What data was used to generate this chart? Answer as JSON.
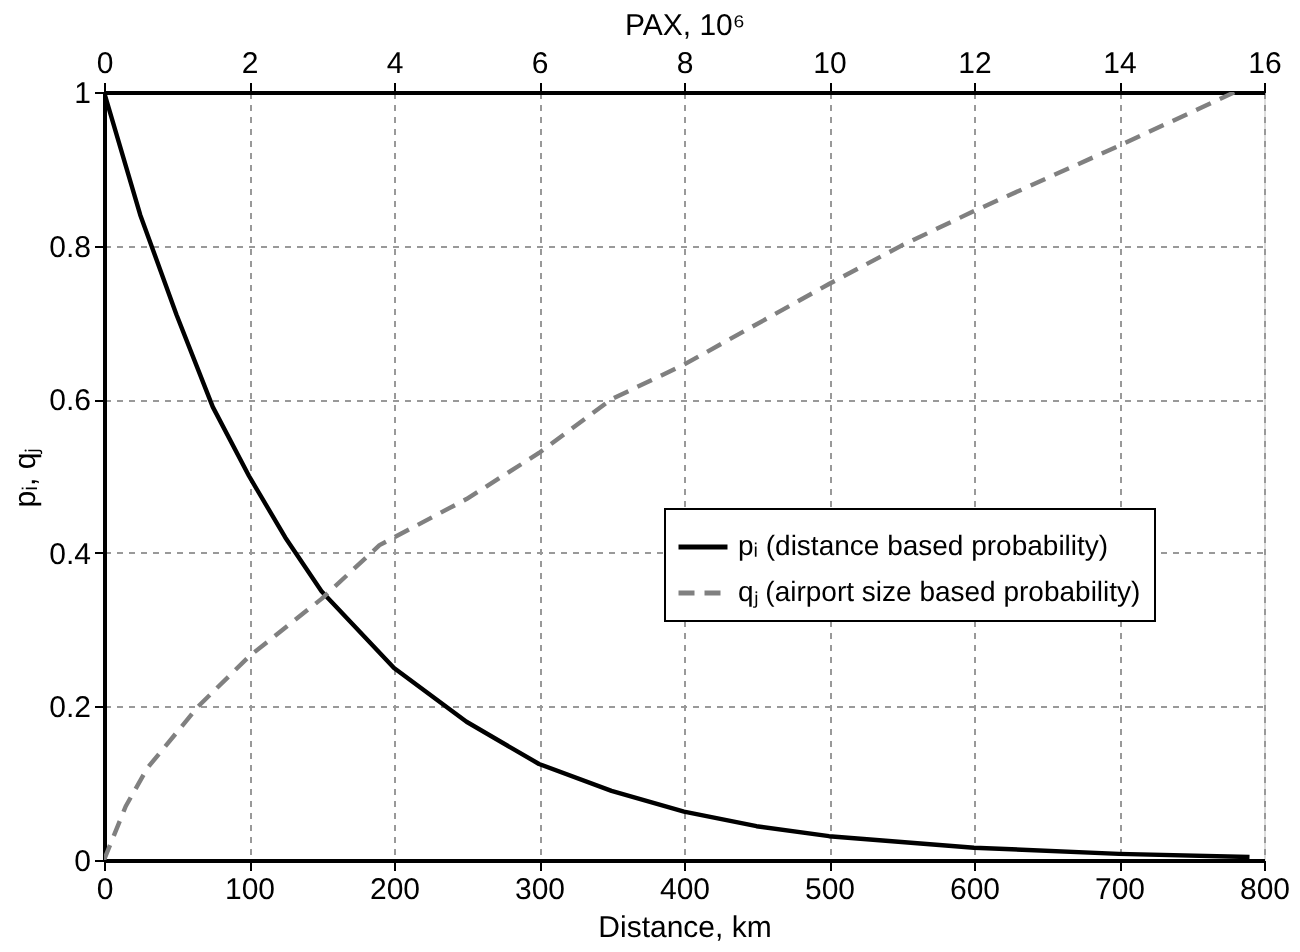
{
  "chart_data": {
    "type": "line",
    "xlabel": "Distance, km",
    "ylabel": "pᵢ, qⱼ",
    "x2label": "PAX, 10⁶",
    "xlim": [
      0,
      800
    ],
    "xticks": [
      0,
      100,
      200,
      300,
      400,
      500,
      600,
      700,
      800
    ],
    "x2lim": [
      0,
      16
    ],
    "x2ticks": [
      0,
      2,
      4,
      6,
      8,
      10,
      12,
      14,
      16
    ],
    "ylim": [
      0,
      1
    ],
    "yticks": [
      0,
      0.2,
      0.4,
      0.6,
      0.8,
      1
    ],
    "grid": true,
    "legend": "right",
    "series": [
      {
        "name": "pᵢ (distance based probability)",
        "color": "#000000",
        "line_style": "solid",
        "x": [
          0,
          25,
          50,
          75,
          100,
          125,
          150,
          200,
          250,
          300,
          350,
          400,
          450,
          500,
          600,
          700,
          790
        ],
        "values": [
          1,
          0.84,
          0.71,
          0.59,
          0.5,
          0.42,
          0.35,
          0.25,
          0.18,
          0.125,
          0.09,
          0.063,
          0.044,
          0.031,
          0.016,
          0.008,
          0.004
        ]
      },
      {
        "name": "qⱼ (airport size based probability)",
        "color": "#808080",
        "line_style": "dashed",
        "axis": "x2",
        "x": [
          0,
          0.3,
          0.6,
          1.3,
          2,
          3,
          3.8,
          5,
          6,
          7,
          8,
          10,
          11,
          12,
          14,
          15.6
        ],
        "values": [
          0,
          0.07,
          0.12,
          0.2,
          0.265,
          0.34,
          0.41,
          0.47,
          0.53,
          0.6,
          0.645,
          0.75,
          0.8,
          0.845,
          0.93,
          1.0
        ]
      }
    ]
  }
}
